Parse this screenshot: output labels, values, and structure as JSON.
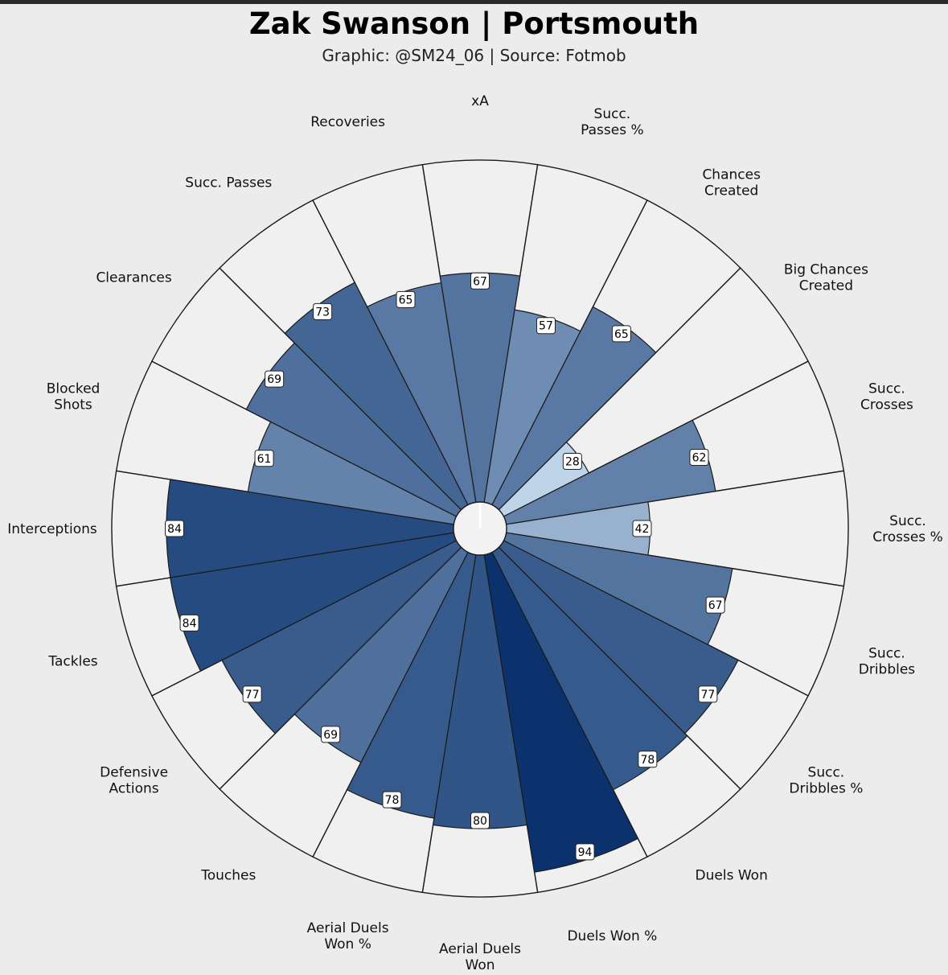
{
  "header": {
    "title": "Zak Swanson | Portsmouth",
    "subtitle": "Graphic: @SM24_06 | Source: Fotmob"
  },
  "chart_data": {
    "type": "radar-bar",
    "title": "Zak Swanson | Portsmouth",
    "subtitle": "Graphic: @SM24_06 | Source: Fotmob",
    "rlim": [
      0,
      100
    ],
    "categories": [
      "xA",
      "Succ.\nPasses %",
      "Chances\nCreated",
      "Big Chances\nCreated",
      "Succ.\nCrosses",
      "Succ.\nCrosses %",
      "Succ.\nDribbles",
      "Succ.\nDribbles %",
      "Duels Won",
      "Duels Won %",
      "Aerial Duels\nWon",
      "Aerial Duels\nWon %",
      "Touches",
      "Defensive\nActions",
      "Tackles",
      "Interceptions",
      "Blocked\nShots",
      "Clearances",
      "Succ. Passes",
      "Recoveries"
    ],
    "values": [
      67,
      57,
      65,
      28,
      62,
      42,
      67,
      77,
      78,
      94,
      80,
      78,
      69,
      77,
      84,
      84,
      61,
      69,
      73,
      65
    ],
    "colors": {
      "background": "#ececec",
      "wedge_background": "#f0f0f0",
      "edge": "#1a1a1a",
      "scale_light": "#c6dbef",
      "scale_dark": "#08306b"
    }
  }
}
